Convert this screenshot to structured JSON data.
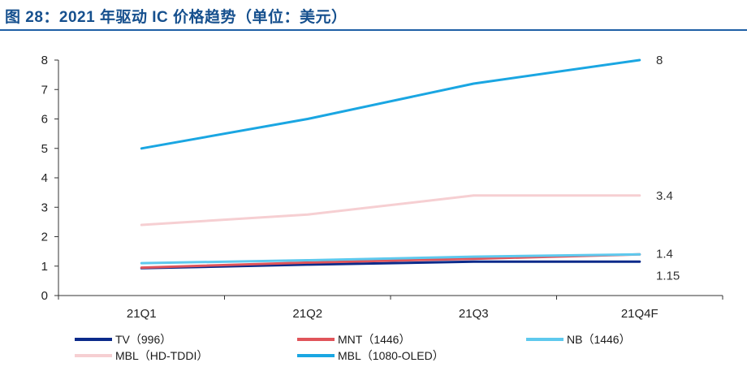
{
  "title": "图 28：2021 年驱动 IC 价格趋势（单位：美元）",
  "chart_data": {
    "type": "line",
    "categories": [
      "21Q1",
      "21Q2",
      "21Q3",
      "21Q4F"
    ],
    "ylim": [
      0,
      8
    ],
    "yticks": [
      "0",
      "1",
      "2",
      "3",
      "4",
      "5",
      "6",
      "7",
      "8"
    ],
    "grid": false,
    "legend_position": "bottom",
    "series": [
      {
        "name": "TV（996）",
        "color": "#0b2a8a",
        "values": [
          0.93,
          1.05,
          1.15,
          1.15
        ],
        "end_label": "1.15"
      },
      {
        "name": "MNT（1446）",
        "color": "#e0545a",
        "values": [
          0.95,
          1.12,
          1.25,
          1.4
        ],
        "end_label": ""
      },
      {
        "name": "NB（1446）",
        "color": "#5ec9ee",
        "values": [
          1.1,
          1.2,
          1.32,
          1.4
        ],
        "end_label": "1.4"
      },
      {
        "name": "MBL（HD-TDDI）",
        "color": "#f6cfd2",
        "values": [
          2.4,
          2.75,
          3.4,
          3.4
        ],
        "end_label": "3.4"
      },
      {
        "name": "MBL（1080-OLED）",
        "color": "#1aa6e2",
        "values": [
          5.0,
          6.0,
          7.2,
          8.0
        ],
        "end_label": "8"
      }
    ]
  }
}
